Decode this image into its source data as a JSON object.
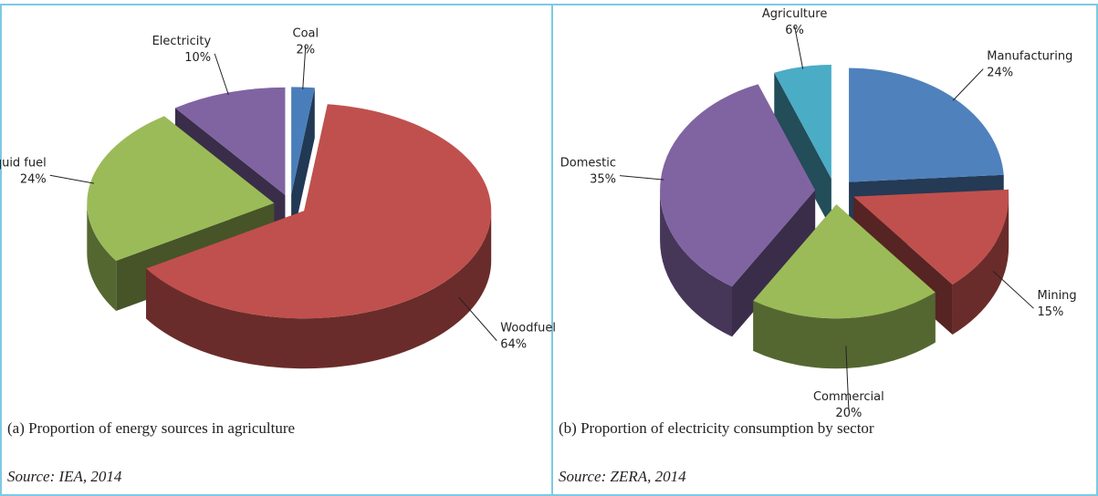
{
  "chart_data": [
    {
      "type": "pie",
      "categories": [
        "Coal",
        "Woodfuel",
        "Liquid fuel",
        "Electricity"
      ],
      "values": [
        2,
        64,
        24,
        10
      ],
      "value_labels": [
        "2%",
        "64%",
        "24%",
        "10%"
      ],
      "colors": [
        "#4a7ebb",
        "#c0504d",
        "#9bbb59",
        "#8064a2"
      ],
      "caption": "(a) Proportion of energy sources in agriculture",
      "source": "Source: IEA, 2014"
    },
    {
      "type": "pie",
      "categories": [
        "Manufacturing",
        "Mining",
        "Commercial",
        "Domestic",
        "Agriculture"
      ],
      "values": [
        24,
        15,
        20,
        35,
        6
      ],
      "value_labels": [
        "24%",
        "15%",
        "20%",
        "35%",
        "6%"
      ],
      "colors": [
        "#4f81bd",
        "#c0504d",
        "#9bbb59",
        "#8064a2",
        "#4bacc6"
      ],
      "caption": "(b) Proportion of electricity consumption by sector",
      "source": "Source: ZERA, 2014"
    }
  ]
}
